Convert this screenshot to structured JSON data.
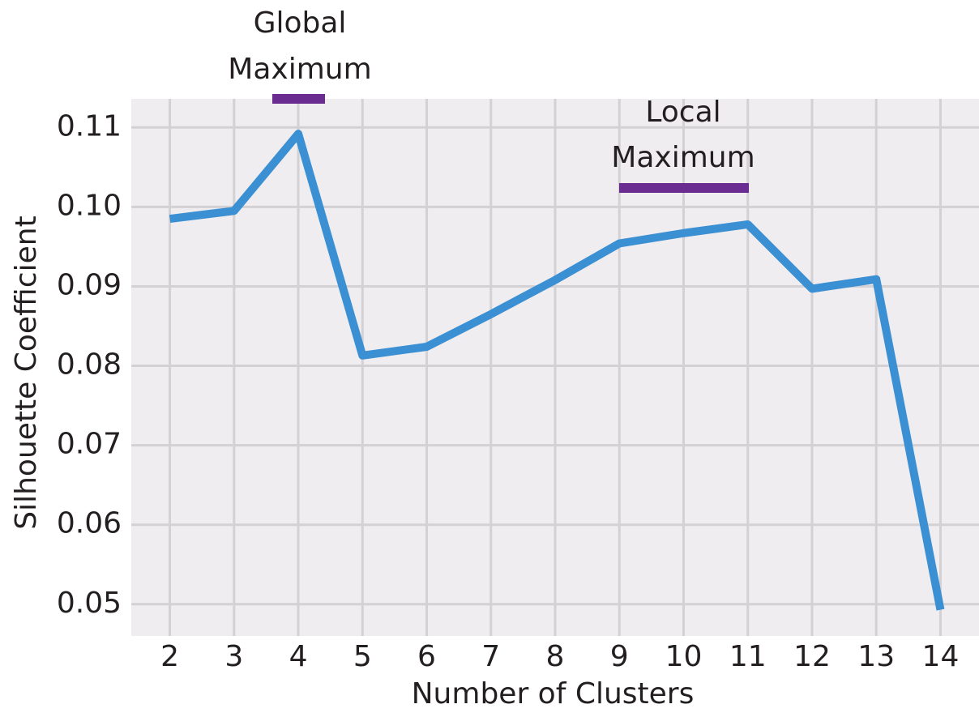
{
  "chart_data": {
    "type": "line",
    "x": [
      2,
      3,
      4,
      5,
      6,
      7,
      8,
      9,
      10,
      11,
      12,
      13,
      14
    ],
    "values": [
      0.0985,
      0.0995,
      0.1092,
      0.0813,
      0.0824,
      0.0865,
      0.0908,
      0.0954,
      0.0967,
      0.0978,
      0.0897,
      0.0909,
      0.0493
    ],
    "color": "#3b8fd3",
    "xlim": [
      1.4,
      14.6
    ],
    "ylim": [
      0.046,
      0.1136
    ],
    "xticks": [
      2,
      3,
      4,
      5,
      6,
      7,
      8,
      9,
      10,
      11,
      12,
      13,
      14
    ],
    "yticks": [
      0.05,
      0.06,
      0.07,
      0.08,
      0.09,
      {
        "value": 0.1,
        "label": "0.10"
      },
      0.11
    ],
    "grid": true,
    "xlabel": "Number of Clusters",
    "ylabel": "Silhouette Coefficient",
    "annotations": [
      {
        "lines": [
          "Global",
          "Maximum"
        ],
        "color": "#6a2c91"
      },
      {
        "lines": [
          "Local",
          "Maximum"
        ],
        "color": "#6a2c91"
      }
    ]
  }
}
